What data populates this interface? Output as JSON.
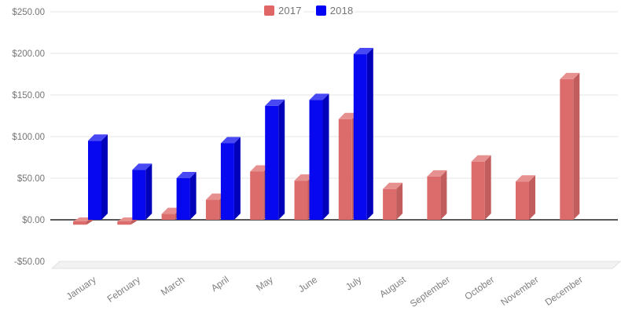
{
  "chart_data": {
    "type": "bar",
    "variant": "3d-column",
    "title": "",
    "categories": [
      "January",
      "February",
      "March",
      "April",
      "May",
      "June",
      "July",
      "August",
      "September",
      "October",
      "November",
      "December"
    ],
    "series": [
      {
        "name": "2017",
        "values": [
          -4,
          -4,
          7,
          24,
          58,
          47,
          121,
          37,
          52,
          70,
          46,
          169
        ],
        "color": "#DC6B6B",
        "color_top": "#E79090",
        "color_side": "#C15D5D",
        "legend_color": "#E06666"
      },
      {
        "name": "2018",
        "values": [
          95,
          60,
          50,
          92,
          137,
          144,
          199,
          null,
          null,
          null,
          null,
          null
        ],
        "color": "#0707F0",
        "color_top": "#4949F3",
        "color_side": "#0101B9",
        "legend_color": "#0404F5"
      }
    ],
    "y_axis": {
      "ticks": [
        {
          "label": "$250.00",
          "value": 250
        },
        {
          "label": "$200.00",
          "value": 200
        },
        {
          "label": "$150.00",
          "value": 150
        },
        {
          "label": "$100.00",
          "value": 100
        },
        {
          "label": "$50.00",
          "value": 50
        },
        {
          "label": "$0.00",
          "value": 0
        },
        {
          "label": "-$50.00",
          "value": -50
        }
      ],
      "min": -50,
      "max": 250,
      "format": "currency-usd"
    },
    "grid": true,
    "legend_position": "top-center"
  },
  "colors": {
    "background": "#FFFFFF",
    "gridline": "#E6E6E6",
    "zero_line": "#595959",
    "floor": "#F2F2F2",
    "floor_edge": "#E0E0E0",
    "tick_label": "#757575",
    "month_label": "#808080",
    "legend_label": "#757575"
  }
}
